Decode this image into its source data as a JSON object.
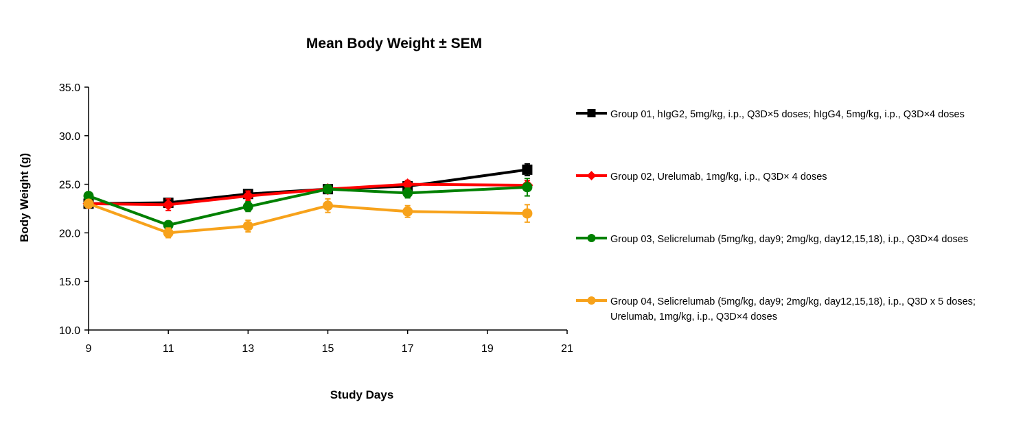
{
  "chart_data": {
    "type": "line",
    "title": "Mean Body Weight ± SEM",
    "xlabel": "Study Days",
    "ylabel": "Body Weight (g)",
    "xlim": [
      9,
      21
    ],
    "ylim": [
      10,
      35
    ],
    "xticks": [
      "9",
      "11",
      "13",
      "15",
      "17",
      "19",
      "21"
    ],
    "yticks": [
      "10.0",
      "15.0",
      "20.0",
      "25.0",
      "30.0",
      "35.0"
    ],
    "grid": false,
    "legend_position": "right",
    "series": [
      {
        "name": "Group 01, hIgG2, 5mg/kg, i.p., Q3D×5 doses; hIgG4, 5mg/kg, i.p., Q3D×4 doses",
        "legend_lines": [
          "Group 01, hIgG2, 5mg/kg, i.p., Q3D×5 doses; hIgG4, 5mg/kg, i.p., Q3D×4 doses"
        ],
        "color": "#000000",
        "marker": "square",
        "x": [
          9,
          11,
          13,
          15,
          17,
          20
        ],
        "y": [
          23.0,
          23.1,
          24.0,
          24.5,
          24.8,
          26.5
        ],
        "err": [
          0.4,
          0.4,
          0.4,
          0.4,
          0.5,
          0.6
        ]
      },
      {
        "name": "Group 02, Urelumab, 1mg/kg, i.p., Q3D× 4 doses",
        "legend_lines": [
          "Group 02, Urelumab, 1mg/kg, i.p., Q3D× 4 doses"
        ],
        "color": "#ff0000",
        "marker": "diamond",
        "x": [
          9,
          11,
          13,
          15,
          17,
          20
        ],
        "y": [
          23.0,
          22.9,
          23.8,
          24.5,
          25.0,
          24.9
        ],
        "err": [
          0.4,
          0.6,
          0.5,
          0.4,
          0.4,
          0.5
        ]
      },
      {
        "name": "Group 03, Selicrelumab (5mg/kg, day9; 2mg/kg, day12,15,18), i.p., Q3D×4 doses",
        "legend_lines": [
          "Group 03, Selicrelumab (5mg/kg, day9; 2mg/kg, day12,15,18), i.p., Q3D×4 doses"
        ],
        "color": "#008000",
        "marker": "circle",
        "x": [
          9,
          11,
          13,
          15,
          17,
          20
        ],
        "y": [
          23.8,
          20.8,
          22.7,
          24.5,
          24.1,
          24.7
        ],
        "err": [
          0.3,
          0.4,
          0.5,
          0.4,
          0.5,
          0.9
        ]
      },
      {
        "name": "Group 04, Selicrelumab (5mg/kg, day9; 2mg/kg, day12,15,18), i.p., Q3D x 5 doses; Urelumab, 1mg/kg, i.p., Q3D×4 doses",
        "legend_lines": [
          "Group 04, Selicrelumab (5mg/kg, day9; 2mg/kg, day12,15,18), i.p., Q3D x 5 doses;",
          "Urelumab, 1mg/kg, i.p., Q3D×4 doses"
        ],
        "color": "#f7a21b",
        "marker": "circle",
        "x": [
          9,
          11,
          13,
          15,
          17,
          20
        ],
        "y": [
          23.0,
          20.0,
          20.7,
          22.8,
          22.2,
          22.0
        ],
        "err": [
          0.4,
          0.5,
          0.6,
          0.7,
          0.6,
          0.9
        ]
      }
    ]
  }
}
